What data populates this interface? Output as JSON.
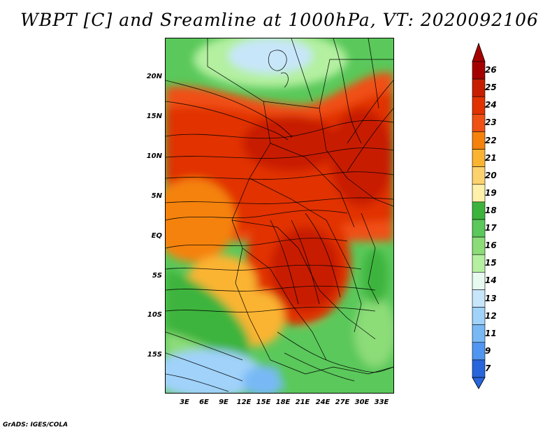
{
  "title": "WBPT [C] and Sreamline at 1000hPa, VT: 2020092106",
  "footer": "GrADS: IGES/COLA",
  "lat_labels": [
    "20N",
    "15N",
    "10N",
    "5N",
    "EQ",
    "5S",
    "10S",
    "15S"
  ],
  "lon_labels": [
    "3E",
    "6E",
    "9E",
    "12E",
    "15E",
    "18E",
    "21E",
    "24E",
    "27E",
    "30E",
    "33E"
  ],
  "colorbar": {
    "levels": [
      "26",
      "25",
      "24",
      "23",
      "22",
      "21",
      "20",
      "19",
      "18",
      "17",
      "16",
      "15",
      "14",
      "13",
      "12",
      "11",
      "9",
      "7"
    ],
    "colors": [
      "#a50000",
      "#c81e00",
      "#e13200",
      "#f05014",
      "#f5820a",
      "#fab432",
      "#fcd26e",
      "#fff0aa",
      "#3cb43c",
      "#5ac85a",
      "#8cdc78",
      "#b4f0a0",
      "#e6faf0",
      "#c8e6fa",
      "#a0d2fa",
      "#78b9f5",
      "#5096f0",
      "#2864dc"
    ]
  }
}
